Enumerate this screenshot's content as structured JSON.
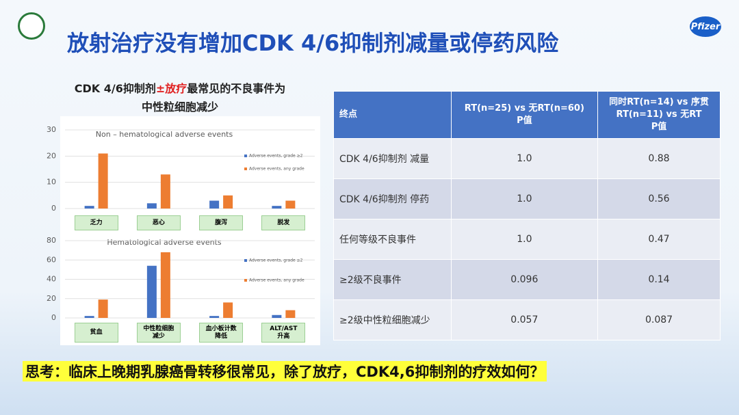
{
  "header": {
    "title": "放射治疗没有增加CDK 4/6抑制剂减量或停药风险",
    "logo": "Pfizer"
  },
  "chart_heading": [
    "CDK 4/6抑制剂",
    "±放疗",
    "最常见的不良事件为",
    "中性粒细胞减少"
  ],
  "chart_data": [
    {
      "type": "bar",
      "title": "Non – hematological adverse events",
      "categories": [
        "乏力",
        "恶心",
        "腹泻",
        "脱发"
      ],
      "series": [
        {
          "name": "Adverse events, grade ≥2",
          "color": "#4472c4",
          "values": [
            1,
            2,
            3,
            1
          ]
        },
        {
          "name": "Adverse events, any grade",
          "color": "#ed7d31",
          "values": [
            21,
            13,
            5,
            3
          ]
        }
      ],
      "ylim": [
        0,
        30
      ],
      "yticks": [
        0,
        10,
        20,
        30
      ],
      "grid": true
    },
    {
      "type": "bar",
      "title": "Hematological adverse events",
      "categories": [
        "贫血",
        "中性粒细胞\n减少",
        "血小板计数\n降低",
        "ALT/AST\n升高"
      ],
      "series": [
        {
          "name": "Adverse events, grade ≥2",
          "color": "#4472c4",
          "values": [
            2,
            54,
            2,
            3
          ]
        },
        {
          "name": "Adverse events, any grade",
          "color": "#ed7d31",
          "values": [
            19,
            68,
            16,
            8
          ]
        }
      ],
      "ylim": [
        0,
        80
      ],
      "yticks": [
        0,
        20,
        40,
        60,
        80
      ],
      "grid": true
    }
  ],
  "table": {
    "header": [
      "终点",
      "RT(n=25) vs 无RT(n=60)\nP值",
      "同时RT(n=14) vs 序贯\nRT(n=11) vs 无RT\nP值"
    ],
    "rows": [
      [
        "CDK 4/6抑制剂 减量",
        "1.0",
        "0.88"
      ],
      [
        "CDK 4/6抑制剂 停药",
        "1.0",
        "0.56"
      ],
      [
        "任何等级不良事件",
        "1.0",
        "0.47"
      ],
      [
        "≥2级不良事件",
        "0.096",
        "0.14"
      ],
      [
        "≥2级中性粒细胞减少",
        "0.057",
        "0.087"
      ]
    ]
  },
  "question": "思考：临床上晚期乳腺癌骨转移很常见，除了放疗，CDK4,6抑制剂的疗效如何？"
}
